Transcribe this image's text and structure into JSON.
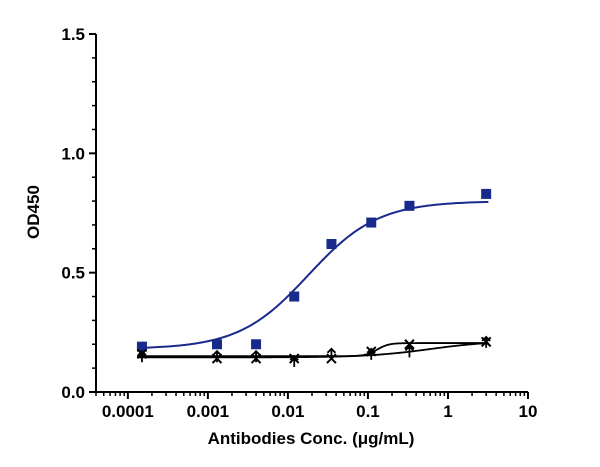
{
  "chart_data": {
    "type": "scatter",
    "title": "",
    "xlabel": "Antibodies Conc. (μg/mL)",
    "ylabel": "OD450",
    "xscale": "log",
    "xlim": [
      4e-05,
      10
    ],
    "ylim": [
      0,
      1.5
    ],
    "xticks": [
      {
        "value": 0.0001,
        "label": "0.0001"
      },
      {
        "value": 0.001,
        "label": "0.001"
      },
      {
        "value": 0.01,
        "label": "0.01"
      },
      {
        "value": 0.1,
        "label": "0.1"
      },
      {
        "value": 1,
        "label": "1"
      },
      {
        "value": 10,
        "label": "10"
      }
    ],
    "yticks": [
      {
        "value": 0.0,
        "label": "0.0"
      },
      {
        "value": 0.5,
        "label": "0.5"
      },
      {
        "value": 1.0,
        "label": "1.0"
      },
      {
        "value": 1.5,
        "label": "1.5"
      }
    ],
    "grid": false,
    "legend": "none",
    "series": [
      {
        "marker": "square",
        "color": "#1a2a8c",
        "fit": "sigmoid",
        "fit_curve": {
          "bottom": 0.18,
          "top": 0.8,
          "ec50": 0.018,
          "hill": 1.0
        },
        "x": [
          0.00015,
          0.0013,
          0.004,
          0.012,
          0.035,
          0.11,
          0.33,
          3.0
        ],
        "y": [
          0.19,
          0.2,
          0.2,
          0.4,
          0.62,
          0.71,
          0.78,
          0.83
        ]
      },
      {
        "marker": "x",
        "color": "#000000",
        "fit": "sigmoid",
        "fit_curve": {
          "bottom": 0.15,
          "top": 0.205,
          "ec50": 0.13,
          "hill": 6.0
        },
        "x": [
          0.00015,
          0.0013,
          0.004,
          0.012,
          0.035,
          0.11,
          0.33,
          3.0
        ],
        "y": [
          0.16,
          0.14,
          0.14,
          0.14,
          0.14,
          0.17,
          0.2,
          0.21
        ]
      },
      {
        "marker": "up-arrow",
        "color": "#000000",
        "fit": "sigmoid",
        "fit_curve": {
          "bottom": 0.145,
          "top": 0.215,
          "ec50": 0.6,
          "hill": 1.1
        },
        "x": [
          0.00015,
          0.0013,
          0.004,
          0.012,
          0.035,
          0.11,
          0.33,
          3.0
        ],
        "y": [
          0.15,
          0.15,
          0.15,
          0.13,
          0.16,
          0.16,
          0.17,
          0.21
        ]
      }
    ]
  }
}
